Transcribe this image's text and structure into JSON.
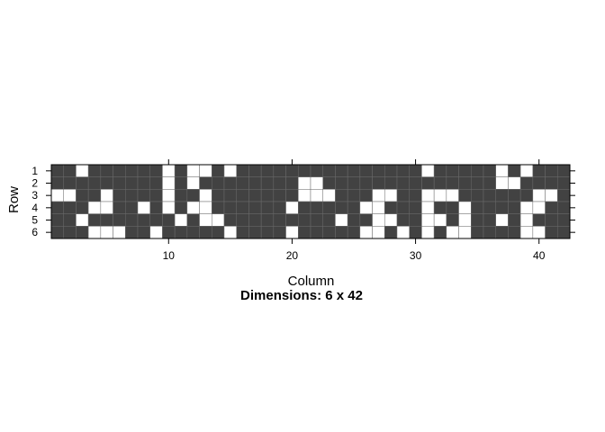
{
  "chart_data": {
    "type": "heatmap",
    "title": "",
    "subtitle": "Dimensions: 6 x 42",
    "xlabel": "Column",
    "ylabel": "Row",
    "nrows": 6,
    "ncols": 42,
    "xlim": [
      0.5,
      42.5
    ],
    "ylim": [
      0.5,
      6.5
    ],
    "x_ticks": [
      10,
      20,
      30,
      40
    ],
    "y_ticks": [
      1,
      2,
      3,
      4,
      5,
      6
    ],
    "y_reversed": true,
    "colors": {
      "zero": "#424242",
      "one": "#ffffff",
      "grid": "#6b6b6b"
    },
    "legend": "none",
    "values": [
      [
        0,
        0,
        1,
        0,
        0,
        0,
        0,
        0,
        0,
        1,
        0,
        1,
        1,
        0,
        1,
        0,
        0,
        0,
        0,
        0,
        0,
        0,
        0,
        0,
        0,
        0,
        0,
        0,
        0,
        0,
        1,
        0,
        0,
        0,
        0,
        0,
        1,
        0,
        1,
        0,
        0,
        0
      ],
      [
        0,
        0,
        0,
        0,
        0,
        0,
        0,
        0,
        0,
        1,
        0,
        1,
        0,
        0,
        0,
        0,
        0,
        0,
        0,
        0,
        1,
        1,
        0,
        0,
        0,
        0,
        0,
        0,
        0,
        0,
        0,
        0,
        0,
        0,
        0,
        0,
        1,
        1,
        0,
        0,
        0,
        0
      ],
      [
        1,
        1,
        0,
        0,
        1,
        0,
        0,
        0,
        0,
        1,
        0,
        0,
        1,
        0,
        0,
        0,
        0,
        0,
        0,
        0,
        1,
        1,
        1,
        0,
        0,
        0,
        1,
        1,
        0,
        0,
        1,
        1,
        1,
        0,
        0,
        0,
        0,
        0,
        0,
        1,
        1,
        0
      ],
      [
        0,
        0,
        0,
        1,
        1,
        0,
        0,
        1,
        0,
        1,
        0,
        1,
        1,
        0,
        0,
        0,
        0,
        0,
        0,
        1,
        0,
        0,
        0,
        0,
        0,
        1,
        1,
        0,
        0,
        0,
        1,
        0,
        0,
        1,
        0,
        0,
        0,
        0,
        1,
        1,
        0,
        0
      ],
      [
        0,
        0,
        1,
        0,
        0,
        0,
        0,
        0,
        0,
        0,
        1,
        0,
        1,
        1,
        0,
        0,
        0,
        0,
        0,
        0,
        0,
        0,
        0,
        1,
        0,
        0,
        1,
        1,
        0,
        0,
        1,
        1,
        0,
        1,
        0,
        0,
        1,
        0,
        1,
        0,
        0,
        0
      ],
      [
        0,
        0,
        0,
        1,
        1,
        1,
        0,
        0,
        1,
        0,
        0,
        0,
        0,
        0,
        1,
        0,
        0,
        0,
        0,
        1,
        0,
        0,
        0,
        0,
        0,
        1,
        1,
        0,
        1,
        0,
        1,
        0,
        1,
        1,
        0,
        0,
        0,
        0,
        1,
        1,
        0,
        0
      ]
    ]
  }
}
